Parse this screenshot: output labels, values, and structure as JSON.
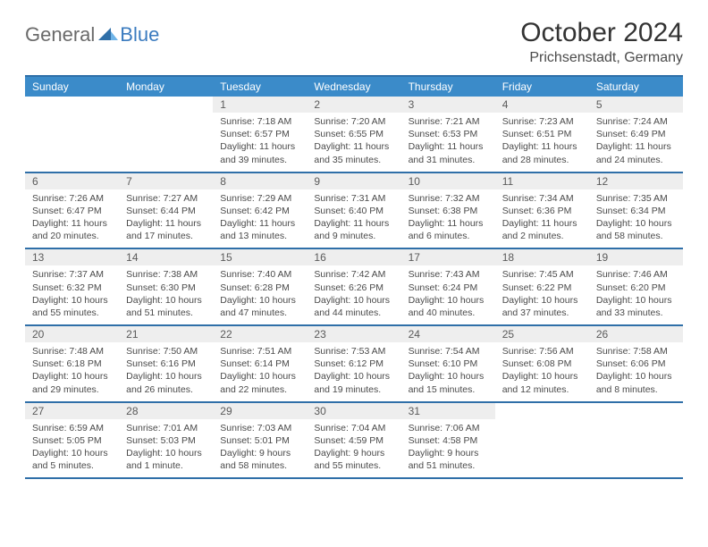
{
  "brand": {
    "part1": "General",
    "part2": "Blue"
  },
  "title": "October 2024",
  "location": "Prichsenstadt, Germany",
  "colors": {
    "header_bar": "#3b8bc9",
    "rule": "#2f6fa8",
    "daynum_bg": "#eeeeee",
    "logo_gray": "#6a6a6a",
    "logo_blue": "#3b7bbf"
  },
  "dow": [
    "Sunday",
    "Monday",
    "Tuesday",
    "Wednesday",
    "Thursday",
    "Friday",
    "Saturday"
  ],
  "weeks": [
    [
      null,
      null,
      {
        "n": "1",
        "sr": "Sunrise: 7:18 AM",
        "ss": "Sunset: 6:57 PM",
        "dl": "Daylight: 11 hours and 39 minutes."
      },
      {
        "n": "2",
        "sr": "Sunrise: 7:20 AM",
        "ss": "Sunset: 6:55 PM",
        "dl": "Daylight: 11 hours and 35 minutes."
      },
      {
        "n": "3",
        "sr": "Sunrise: 7:21 AM",
        "ss": "Sunset: 6:53 PM",
        "dl": "Daylight: 11 hours and 31 minutes."
      },
      {
        "n": "4",
        "sr": "Sunrise: 7:23 AM",
        "ss": "Sunset: 6:51 PM",
        "dl": "Daylight: 11 hours and 28 minutes."
      },
      {
        "n": "5",
        "sr": "Sunrise: 7:24 AM",
        "ss": "Sunset: 6:49 PM",
        "dl": "Daylight: 11 hours and 24 minutes."
      }
    ],
    [
      {
        "n": "6",
        "sr": "Sunrise: 7:26 AM",
        "ss": "Sunset: 6:47 PM",
        "dl": "Daylight: 11 hours and 20 minutes."
      },
      {
        "n": "7",
        "sr": "Sunrise: 7:27 AM",
        "ss": "Sunset: 6:44 PM",
        "dl": "Daylight: 11 hours and 17 minutes."
      },
      {
        "n": "8",
        "sr": "Sunrise: 7:29 AM",
        "ss": "Sunset: 6:42 PM",
        "dl": "Daylight: 11 hours and 13 minutes."
      },
      {
        "n": "9",
        "sr": "Sunrise: 7:31 AM",
        "ss": "Sunset: 6:40 PM",
        "dl": "Daylight: 11 hours and 9 minutes."
      },
      {
        "n": "10",
        "sr": "Sunrise: 7:32 AM",
        "ss": "Sunset: 6:38 PM",
        "dl": "Daylight: 11 hours and 6 minutes."
      },
      {
        "n": "11",
        "sr": "Sunrise: 7:34 AM",
        "ss": "Sunset: 6:36 PM",
        "dl": "Daylight: 11 hours and 2 minutes."
      },
      {
        "n": "12",
        "sr": "Sunrise: 7:35 AM",
        "ss": "Sunset: 6:34 PM",
        "dl": "Daylight: 10 hours and 58 minutes."
      }
    ],
    [
      {
        "n": "13",
        "sr": "Sunrise: 7:37 AM",
        "ss": "Sunset: 6:32 PM",
        "dl": "Daylight: 10 hours and 55 minutes."
      },
      {
        "n": "14",
        "sr": "Sunrise: 7:38 AM",
        "ss": "Sunset: 6:30 PM",
        "dl": "Daylight: 10 hours and 51 minutes."
      },
      {
        "n": "15",
        "sr": "Sunrise: 7:40 AM",
        "ss": "Sunset: 6:28 PM",
        "dl": "Daylight: 10 hours and 47 minutes."
      },
      {
        "n": "16",
        "sr": "Sunrise: 7:42 AM",
        "ss": "Sunset: 6:26 PM",
        "dl": "Daylight: 10 hours and 44 minutes."
      },
      {
        "n": "17",
        "sr": "Sunrise: 7:43 AM",
        "ss": "Sunset: 6:24 PM",
        "dl": "Daylight: 10 hours and 40 minutes."
      },
      {
        "n": "18",
        "sr": "Sunrise: 7:45 AM",
        "ss": "Sunset: 6:22 PM",
        "dl": "Daylight: 10 hours and 37 minutes."
      },
      {
        "n": "19",
        "sr": "Sunrise: 7:46 AM",
        "ss": "Sunset: 6:20 PM",
        "dl": "Daylight: 10 hours and 33 minutes."
      }
    ],
    [
      {
        "n": "20",
        "sr": "Sunrise: 7:48 AM",
        "ss": "Sunset: 6:18 PM",
        "dl": "Daylight: 10 hours and 29 minutes."
      },
      {
        "n": "21",
        "sr": "Sunrise: 7:50 AM",
        "ss": "Sunset: 6:16 PM",
        "dl": "Daylight: 10 hours and 26 minutes."
      },
      {
        "n": "22",
        "sr": "Sunrise: 7:51 AM",
        "ss": "Sunset: 6:14 PM",
        "dl": "Daylight: 10 hours and 22 minutes."
      },
      {
        "n": "23",
        "sr": "Sunrise: 7:53 AM",
        "ss": "Sunset: 6:12 PM",
        "dl": "Daylight: 10 hours and 19 minutes."
      },
      {
        "n": "24",
        "sr": "Sunrise: 7:54 AM",
        "ss": "Sunset: 6:10 PM",
        "dl": "Daylight: 10 hours and 15 minutes."
      },
      {
        "n": "25",
        "sr": "Sunrise: 7:56 AM",
        "ss": "Sunset: 6:08 PM",
        "dl": "Daylight: 10 hours and 12 minutes."
      },
      {
        "n": "26",
        "sr": "Sunrise: 7:58 AM",
        "ss": "Sunset: 6:06 PM",
        "dl": "Daylight: 10 hours and 8 minutes."
      }
    ],
    [
      {
        "n": "27",
        "sr": "Sunrise: 6:59 AM",
        "ss": "Sunset: 5:05 PM",
        "dl": "Daylight: 10 hours and 5 minutes."
      },
      {
        "n": "28",
        "sr": "Sunrise: 7:01 AM",
        "ss": "Sunset: 5:03 PM",
        "dl": "Daylight: 10 hours and 1 minute."
      },
      {
        "n": "29",
        "sr": "Sunrise: 7:03 AM",
        "ss": "Sunset: 5:01 PM",
        "dl": "Daylight: 9 hours and 58 minutes."
      },
      {
        "n": "30",
        "sr": "Sunrise: 7:04 AM",
        "ss": "Sunset: 4:59 PM",
        "dl": "Daylight: 9 hours and 55 minutes."
      },
      {
        "n": "31",
        "sr": "Sunrise: 7:06 AM",
        "ss": "Sunset: 4:58 PM",
        "dl": "Daylight: 9 hours and 51 minutes."
      },
      null,
      null
    ]
  ]
}
